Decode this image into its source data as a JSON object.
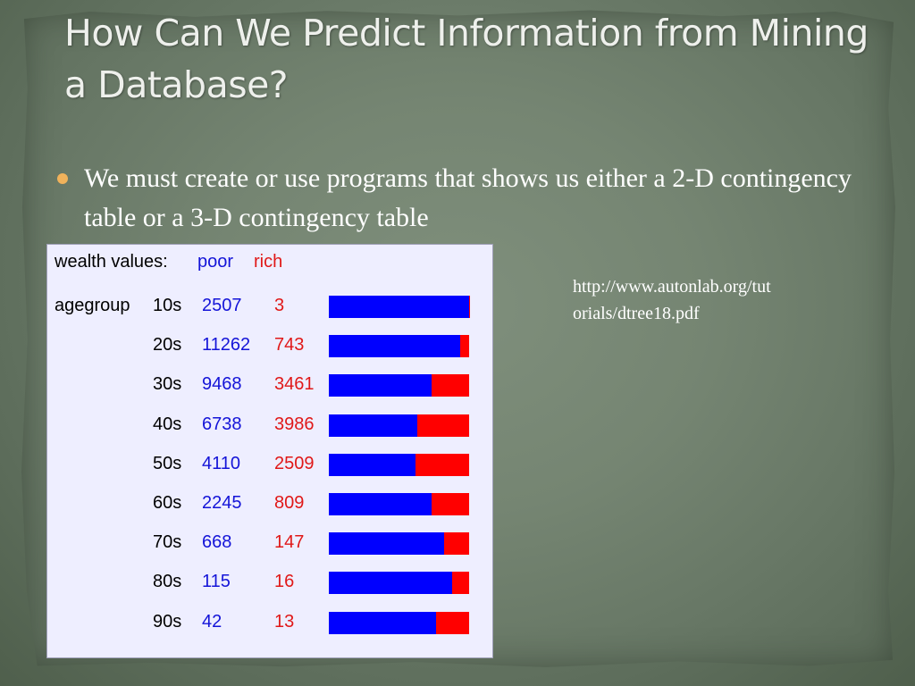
{
  "title": "How Can We Predict Information from Mining a Database?",
  "bullet": "We must create or use programs that shows us either a 2-D contingency table or a 3-D contingency table",
  "link": "http://www.autonlab.org/tutorials/dtree18.pdf",
  "table": {
    "header_label": "wealth values:",
    "poor_label": "poor",
    "rich_label": "rich",
    "row_label": "agegroup",
    "colors": {
      "poor": "#0000ff",
      "rich": "#ff0000",
      "panel": "#eeeeff"
    },
    "rows": [
      {
        "group": "10s",
        "poor": "2507",
        "rich": "3"
      },
      {
        "group": "20s",
        "poor": "11262",
        "rich": "743"
      },
      {
        "group": "30s",
        "poor": "9468",
        "rich": "3461"
      },
      {
        "group": "40s",
        "poor": "6738",
        "rich": "3986"
      },
      {
        "group": "50s",
        "poor": "4110",
        "rich": "2509"
      },
      {
        "group": "60s",
        "poor": "2245",
        "rich": "809"
      },
      {
        "group": "70s",
        "poor": "668",
        "rich": "147"
      },
      {
        "group": "80s",
        "poor": "115",
        "rich": "16"
      },
      {
        "group": "90s",
        "poor": "42",
        "rich": "13"
      }
    ]
  }
}
